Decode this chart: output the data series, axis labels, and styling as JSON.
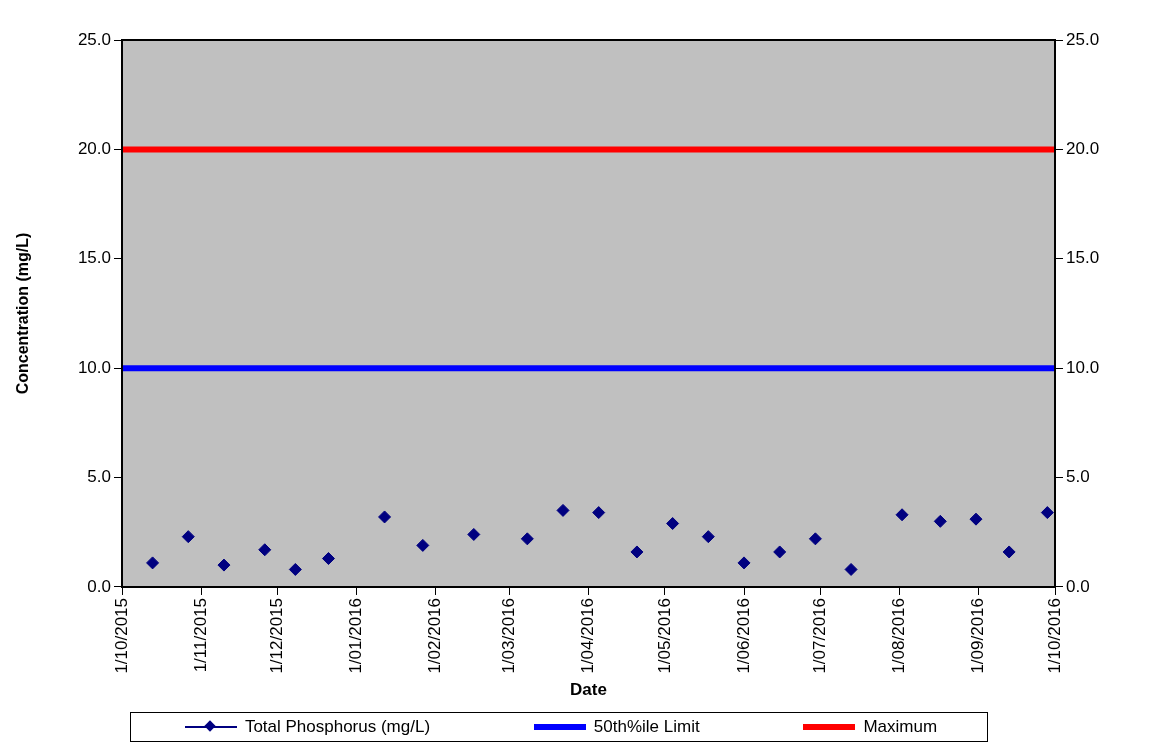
{
  "chart_data": {
    "type": "scatter",
    "xlabel": "Date",
    "ylabel": "Concentration (mg/L)",
    "series": [
      {
        "name": "Total Phosphorus (mg/L)",
        "color": "#000080",
        "x": [
          "2015-10-13",
          "2015-10-27",
          "2015-11-10",
          "2015-11-26",
          "2015-12-08",
          "2015-12-21",
          "2016-01-12",
          "2016-01-27",
          "2016-02-16",
          "2016-03-08",
          "2016-03-22",
          "2016-04-05",
          "2016-04-20",
          "2016-05-04",
          "2016-05-18",
          "2016-06-01",
          "2016-06-15",
          "2016-06-29",
          "2016-07-13",
          "2016-08-02",
          "2016-08-17",
          "2016-08-31",
          "2016-09-13",
          "2016-09-28"
        ],
        "values": [
          1.1,
          2.3,
          1.0,
          1.7,
          0.8,
          1.3,
          3.2,
          1.9,
          2.4,
          2.2,
          3.5,
          3.4,
          1.6,
          2.9,
          2.3,
          1.1,
          1.6,
          2.2,
          0.8,
          3.3,
          3.0,
          3.1,
          1.6,
          3.4
        ]
      }
    ],
    "ref_lines": [
      {
        "axis": "y",
        "value": 10,
        "label": "50th%ile Limit",
        "color": "#0000ff"
      },
      {
        "axis": "y",
        "value": 20,
        "label": "Maximum",
        "color": "#ff0000"
      }
    ],
    "marker": "diamond",
    "legend": "bottom",
    "grid": false,
    "xlim": [
      "2015-10-01",
      "2016-10-01"
    ],
    "xticks": [
      {
        "value": "2015-10-01",
        "label": "1/10/2015"
      },
      {
        "value": "2015-11-01",
        "label": "1/11/2015"
      },
      {
        "value": "2015-12-01",
        "label": "1/12/2015"
      },
      {
        "value": "2016-01-01",
        "label": "1/01/2016"
      },
      {
        "value": "2016-02-01",
        "label": "1/02/2016"
      },
      {
        "value": "2016-03-01",
        "label": "1/03/2016"
      },
      {
        "value": "2016-04-01",
        "label": "1/04/2016"
      },
      {
        "value": "2016-05-01",
        "label": "1/05/2016"
      },
      {
        "value": "2016-06-01",
        "label": "1/06/2016"
      },
      {
        "value": "2016-07-01",
        "label": "1/07/2016"
      },
      {
        "value": "2016-08-01",
        "label": "1/08/2016"
      },
      {
        "value": "2016-09-01",
        "label": "1/09/2016"
      },
      {
        "value": "2016-10-01",
        "label": "1/10/2016"
      }
    ],
    "ylim": [
      0,
      25
    ],
    "yticks": [
      {
        "value": 0,
        "label": "0.0"
      },
      {
        "value": 5,
        "label": "5.0"
      },
      {
        "value": 10,
        "label": "10.0"
      },
      {
        "value": 15,
        "label": "15.0"
      },
      {
        "value": 20,
        "label": "20.0"
      },
      {
        "value": 25,
        "label": "25.0"
      }
    ],
    "y2lim": [
      0,
      25
    ],
    "y2ticks": [
      {
        "value": 0,
        "label": "0.0"
      },
      {
        "value": 5,
        "label": "5.0"
      },
      {
        "value": 10,
        "label": "10.0"
      },
      {
        "value": 15,
        "label": "15.0"
      },
      {
        "value": 20,
        "label": "20.0"
      },
      {
        "value": 25,
        "label": "25.0"
      }
    ]
  }
}
